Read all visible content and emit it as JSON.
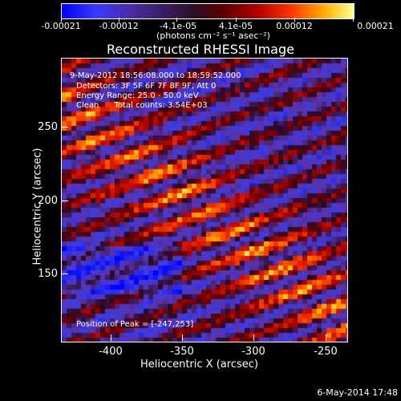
{
  "colorbar": {
    "labels": [
      "-0.00021",
      "-0.00012",
      "-4.1e-05",
      "4.1e-05",
      "0.00012",
      "0.00021"
    ],
    "units": "(photons cm⁻² s⁻¹ asec⁻²)"
  },
  "title": "Reconstructed RHESSI Image",
  "info": {
    "time": "9-May-2012 18:56:08.000 to 18:59:52.000",
    "detectors": "Detectors: 3F 5F 6F 7F 8F 9F, Att 0",
    "energy": "Energy Range: 25.0 - 50.0 keV",
    "clean": "Clean      Total counts: 3.54E+03",
    "peak": "Position of Peak = [-247,253]"
  },
  "axes": {
    "xlabel": "Heliocentric X (arcsec)",
    "ylabel": "Heliocentric Y (arcsec)",
    "xticks": [
      "-400",
      "-350",
      "-300",
      "-250"
    ],
    "yticks": [
      "250",
      "200",
      "150"
    ]
  },
  "footer_date": "6-May-2014 17:48",
  "colors": {
    "background": "#000000",
    "foreground": "#ffffff"
  }
}
